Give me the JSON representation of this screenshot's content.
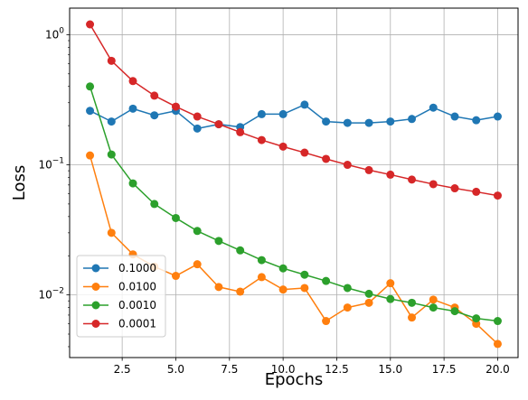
{
  "chart_data": {
    "type": "line",
    "title": "",
    "xlabel": "Epochs",
    "ylabel": "Loss",
    "yscale": "log",
    "xlim": [
      0.05,
      20.95
    ],
    "ylim": [
      0.0033,
      1.6
    ],
    "grid": true,
    "legend_position": "lower-left",
    "x": [
      1,
      2,
      3,
      4,
      5,
      6,
      7,
      8,
      9,
      10,
      11,
      12,
      13,
      14,
      15,
      16,
      17,
      18,
      19,
      20
    ],
    "x_ticks": [
      2.5,
      5.0,
      7.5,
      10.0,
      12.5,
      15.0,
      17.5,
      20.0
    ],
    "x_tick_labels": [
      "2.5",
      "5.0",
      "7.5",
      "10.0",
      "12.5",
      "15.0",
      "17.5",
      "20.0"
    ],
    "y_ticks": [
      0.01,
      0.1,
      1
    ],
    "y_tick_labels": [
      {
        "base": "10",
        "exp": "−2"
      },
      {
        "base": "10",
        "exp": "−1"
      },
      {
        "base": "10",
        "exp": "0"
      }
    ],
    "series": [
      {
        "name": "0.1000",
        "color": "#1f77b4",
        "values": [
          0.26,
          0.215,
          0.27,
          0.24,
          0.26,
          0.19,
          0.205,
          0.195,
          0.245,
          0.245,
          0.29,
          0.215,
          0.21,
          0.21,
          0.215,
          0.225,
          0.275,
          0.235,
          0.22,
          0.235
        ]
      },
      {
        "name": "0.0100",
        "color": "#ff7f0e",
        "values": [
          0.118,
          0.03,
          0.0205,
          0.0165,
          0.014,
          0.0172,
          0.0115,
          0.0106,
          0.0137,
          0.011,
          0.0113,
          0.0063,
          0.008,
          0.0087,
          0.0123,
          0.0067,
          0.0092,
          0.008,
          0.006,
          0.0042
        ]
      },
      {
        "name": "0.0010",
        "color": "#2ca02c",
        "values": [
          0.4,
          0.12,
          0.072,
          0.05,
          0.039,
          0.031,
          0.026,
          0.022,
          0.0185,
          0.016,
          0.0143,
          0.0128,
          0.0113,
          0.0102,
          0.0093,
          0.0087,
          0.008,
          0.0075,
          0.0066,
          0.0063
        ]
      },
      {
        "name": "0.0001",
        "color": "#d62728",
        "values": [
          1.2,
          0.63,
          0.44,
          0.34,
          0.28,
          0.235,
          0.205,
          0.178,
          0.155,
          0.138,
          0.124,
          0.111,
          0.1,
          0.091,
          0.084,
          0.077,
          0.071,
          0.066,
          0.062,
          0.058
        ]
      }
    ]
  }
}
